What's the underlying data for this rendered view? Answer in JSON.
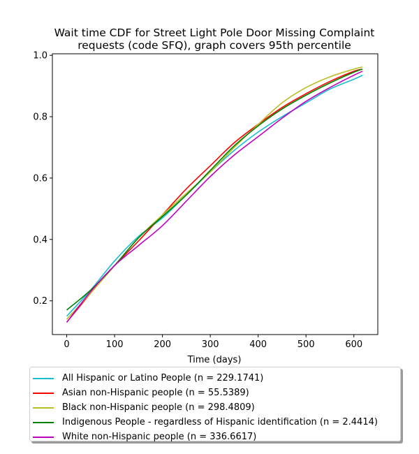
{
  "chart_data": {
    "type": "line",
    "title": "Wait time CDF for Street Light Pole Door Missing Complaint requests (code SFQ), graph covers 95th percentile",
    "title_lines": [
      "Wait time CDF for Street Light Pole Door Missing Complaint",
      "requests (code SFQ), graph covers 95th percentile"
    ],
    "xlabel": "Time (days)",
    "ylabel": "",
    "xlim": [
      -30,
      650
    ],
    "ylim": [
      0.09,
      1.005
    ],
    "xticks": [
      0,
      100,
      200,
      300,
      400,
      500,
      600
    ],
    "yticks": [
      0.2,
      0.4,
      0.6,
      0.8,
      1.0
    ],
    "ytick_labels": [
      "0.2",
      "0.4",
      "0.6",
      "0.8",
      "1.0"
    ],
    "grid": false,
    "legend_position": "below",
    "x": [
      0,
      50,
      100,
      150,
      200,
      250,
      300,
      350,
      400,
      450,
      500,
      550,
      600,
      618
    ],
    "series": [
      {
        "name": "All Hispanic or Latino People (n = 229.1741)",
        "color": "#17becf",
        "values": [
          0.15,
          0.235,
          0.33,
          0.41,
          0.47,
          0.545,
          0.62,
          0.69,
          0.75,
          0.8,
          0.845,
          0.89,
          0.922,
          0.935
        ]
      },
      {
        "name": "Asian non-Hispanic people (n = 55.5389)",
        "color": "#ff0000",
        "values": [
          0.13,
          0.225,
          0.315,
          0.395,
          0.48,
          0.565,
          0.64,
          0.715,
          0.775,
          0.83,
          0.875,
          0.915,
          0.948,
          0.955
        ]
      },
      {
        "name": "Black non-Hispanic people (n = 298.4809)",
        "color": "#bcbd22",
        "values": [
          0.14,
          0.225,
          0.315,
          0.405,
          0.48,
          0.55,
          0.62,
          0.7,
          0.775,
          0.845,
          0.895,
          0.93,
          0.955,
          0.962
        ]
      },
      {
        "name": "Indigenous People - regardless of Hispanic identification (n = 2.4414)",
        "color": "#008000",
        "values": [
          0.17,
          0.235,
          0.315,
          0.405,
          0.475,
          0.545,
          0.625,
          0.705,
          0.77,
          0.825,
          0.87,
          0.91,
          0.945,
          0.955
        ]
      },
      {
        "name": "White non-Hispanic people (n = 336.6617)",
        "color": "#bf00bf",
        "values": [
          0.13,
          0.23,
          0.315,
          0.38,
          0.445,
          0.525,
          0.605,
          0.675,
          0.735,
          0.795,
          0.85,
          0.895,
          0.935,
          0.948
        ]
      }
    ]
  }
}
